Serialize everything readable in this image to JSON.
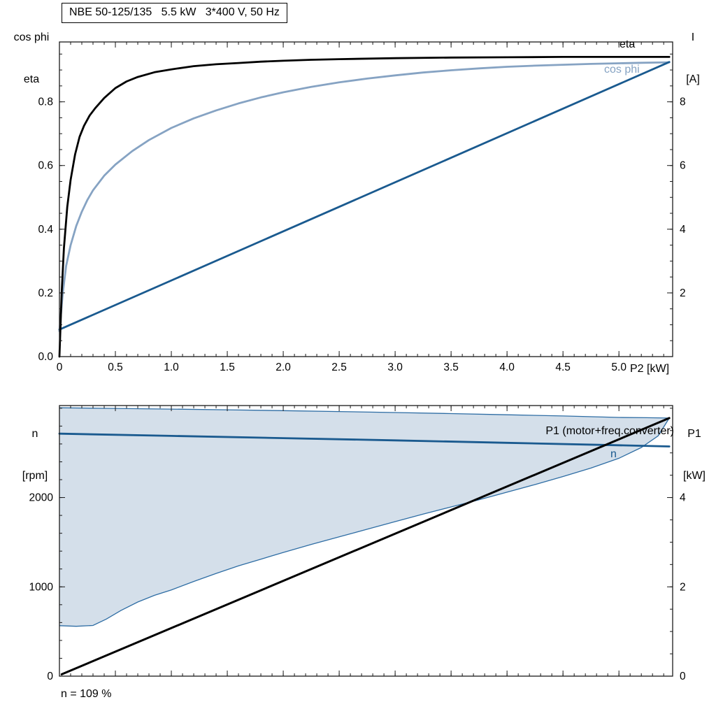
{
  "title_box": {
    "text": "NBE 50-125/135   5.5 kW   3*400 V, 50 Hz"
  },
  "top_chart": {
    "left_axis_title": [
      "cos phi",
      "eta"
    ],
    "right_axis_title": [
      "I",
      "[A]"
    ],
    "x_axis_title": "P2 [kW]",
    "eta_label": "eta",
    "cos_phi_label": "cos phi"
  },
  "bottom_chart": {
    "left_axis_title": [
      "n",
      "[rpm]"
    ],
    "right_axis_title": [
      "P1",
      "[kW]"
    ],
    "p1_label": "P1 (motor+freq.converter)",
    "n_label": "n",
    "footnote": "n = 109 %"
  },
  "colors": {
    "dark_blue": "#1a5a8f",
    "light_blue": "#86a3c3",
    "area_fill": "#cfdbe8",
    "area_edge": "#2e6da4",
    "axis": "#1a1a1a"
  },
  "chart_data": [
    {
      "type": "line",
      "title": "NBE 50-125/135 5.5 kW 3*400 V, 50 Hz",
      "xlabel": "P2 [kW]",
      "xlim": [
        0,
        5.48
      ],
      "x_major_ticks": [
        0,
        0.5,
        1.0,
        1.5,
        2.0,
        2.5,
        3.0,
        3.5,
        4.0,
        4.5,
        5.0
      ],
      "x_tick_labels": [
        "0",
        "0.5",
        "1.0",
        "1.5",
        "2.0",
        "2.5",
        "3.0",
        "3.5",
        "4.0",
        "4.5",
        "5.0"
      ],
      "x_minor_step": 0.1,
      "left_axis": {
        "label": "cos phi / eta",
        "lim": [
          0,
          0.988
        ],
        "major_ticks": [
          0,
          0.2,
          0.4,
          0.6,
          0.8
        ],
        "tick_labels": [
          "0.0",
          "0.2",
          "0.4",
          "0.6",
          "0.8"
        ],
        "minor_step": 0.05
      },
      "right_axis": {
        "label": "I [A]",
        "lim": [
          0,
          9.88
        ],
        "major_ticks": [
          2,
          4,
          6,
          8
        ],
        "tick_labels": [
          "2",
          "4",
          "6",
          "8"
        ],
        "minor_step": 0.5
      },
      "grid": false,
      "series": [
        {
          "name": "cos phi",
          "axis": "left",
          "color": "#86a3c3",
          "width": 2.8,
          "points": [
            [
              0,
              0.08
            ],
            [
              0.03,
              0.2
            ],
            [
              0.06,
              0.285
            ],
            [
              0.1,
              0.35
            ],
            [
              0.15,
              0.41
            ],
            [
              0.2,
              0.455
            ],
            [
              0.25,
              0.492
            ],
            [
              0.3,
              0.522
            ],
            [
              0.4,
              0.568
            ],
            [
              0.5,
              0.603
            ],
            [
              0.65,
              0.645
            ],
            [
              0.8,
              0.68
            ],
            [
              1.0,
              0.718
            ],
            [
              1.2,
              0.748
            ],
            [
              1.4,
              0.773
            ],
            [
              1.6,
              0.795
            ],
            [
              1.8,
              0.814
            ],
            [
              2.0,
              0.83
            ],
            [
              2.25,
              0.847
            ],
            [
              2.5,
              0.861
            ],
            [
              2.75,
              0.873
            ],
            [
              3.0,
              0.883
            ],
            [
              3.25,
              0.892
            ],
            [
              3.5,
              0.899
            ],
            [
              3.75,
              0.905
            ],
            [
              4.0,
              0.91
            ],
            [
              4.25,
              0.9135
            ],
            [
              4.5,
              0.9165
            ],
            [
              4.75,
              0.919
            ],
            [
              5.0,
              0.921
            ],
            [
              5.2,
              0.9225
            ],
            [
              5.45,
              0.924
            ]
          ]
        },
        {
          "name": "I",
          "axis": "right",
          "color": "#1a5a8f",
          "width": 2.8,
          "points": [
            [
              0,
              0.85
            ],
            [
              5.45,
              9.25
            ]
          ]
        },
        {
          "name": "eta",
          "axis": "left",
          "color": "#000000",
          "width": 2.8,
          "points": [
            [
              0,
              0
            ],
            [
              0.02,
              0.2
            ],
            [
              0.04,
              0.34
            ],
            [
              0.07,
              0.47
            ],
            [
              0.1,
              0.555
            ],
            [
              0.14,
              0.635
            ],
            [
              0.18,
              0.69
            ],
            [
              0.22,
              0.725
            ],
            [
              0.27,
              0.757
            ],
            [
              0.32,
              0.78
            ],
            [
              0.4,
              0.812
            ],
            [
              0.5,
              0.843
            ],
            [
              0.6,
              0.864
            ],
            [
              0.7,
              0.878
            ],
            [
              0.85,
              0.893
            ],
            [
              1.0,
              0.902
            ],
            [
              1.2,
              0.912
            ],
            [
              1.4,
              0.918
            ],
            [
              1.6,
              0.922
            ],
            [
              1.8,
              0.926
            ],
            [
              2.0,
              0.929
            ],
            [
              2.25,
              0.932
            ],
            [
              2.5,
              0.934
            ],
            [
              3.0,
              0.937
            ],
            [
              3.5,
              0.939
            ],
            [
              4.0,
              0.94
            ],
            [
              4.5,
              0.941
            ],
            [
              5.0,
              0.941
            ],
            [
              5.45,
              0.941
            ]
          ]
        }
      ]
    },
    {
      "type": "line+area",
      "xlabel": "",
      "xlim": [
        0,
        5.48
      ],
      "x_major_ticks": [
        0,
        0.5,
        1.0,
        1.5,
        2.0,
        2.5,
        3.0,
        3.5,
        4.0,
        4.5,
        5.0
      ],
      "x_tick_labels": null,
      "x_minor_step": 0.1,
      "left_axis": {
        "label": "n [rpm]",
        "lim": [
          0,
          3030
        ],
        "major_ticks": [
          0,
          1000,
          2000
        ],
        "tick_labels": [
          "0",
          "1000",
          "2000"
        ],
        "minor_step": 200
      },
      "right_axis": {
        "label": "P1 [kW]",
        "lim": [
          0,
          6.06
        ],
        "major_ticks": [
          0,
          2,
          4
        ],
        "tick_labels": [
          "0",
          "2",
          "4"
        ],
        "minor_step": 0.5
      },
      "grid": false,
      "annotation": "n = 109 %",
      "area": {
        "name": "speed-operating-range",
        "fill": "#cfdbe8",
        "opacity": 0.9,
        "edge_color": "#2e6da4",
        "edge_width": 1.3,
        "upper": [
          [
            0,
            3005
          ],
          [
            0.5,
            2998
          ],
          [
            1.0,
            2990
          ],
          [
            1.5,
            2982
          ],
          [
            2.0,
            2973
          ],
          [
            2.5,
            2963
          ],
          [
            3.0,
            2952
          ],
          [
            3.5,
            2940
          ],
          [
            4.0,
            2927
          ],
          [
            4.5,
            2913
          ],
          [
            5.0,
            2897
          ],
          [
            5.25,
            2894
          ],
          [
            5.45,
            2890
          ]
        ],
        "lower": [
          [
            0,
            565
          ],
          [
            0.15,
            558
          ],
          [
            0.3,
            568
          ],
          [
            0.42,
            640
          ],
          [
            0.55,
            735
          ],
          [
            0.7,
            830
          ],
          [
            0.85,
            905
          ],
          [
            1.0,
            965
          ],
          [
            1.2,
            1060
          ],
          [
            1.4,
            1150
          ],
          [
            1.6,
            1235
          ],
          [
            1.8,
            1310
          ],
          [
            2.0,
            1385
          ],
          [
            2.25,
            1475
          ],
          [
            2.5,
            1560
          ],
          [
            2.75,
            1645
          ],
          [
            3.0,
            1730
          ],
          [
            3.25,
            1815
          ],
          [
            3.5,
            1895
          ],
          [
            3.75,
            1975
          ],
          [
            4.0,
            2060
          ],
          [
            4.25,
            2145
          ],
          [
            4.5,
            2235
          ],
          [
            4.75,
            2330
          ],
          [
            5.0,
            2440
          ],
          [
            5.2,
            2560
          ],
          [
            5.35,
            2690
          ],
          [
            5.45,
            2890
          ]
        ]
      },
      "series": [
        {
          "name": "n",
          "axis": "left",
          "color": "#1a5a8f",
          "width": 2.8,
          "points": [
            [
              0,
              2715
            ],
            [
              1.0,
              2690
            ],
            [
              2.0,
              2665
            ],
            [
              3.0,
              2640
            ],
            [
              4.0,
              2613
            ],
            [
              5.0,
              2585
            ],
            [
              5.45,
              2572
            ]
          ]
        },
        {
          "name": "P1 (motor+freq.converter)",
          "axis": "right",
          "color": "#000000",
          "width": 3,
          "points": [
            [
              0.02,
              0.04
            ],
            [
              5.45,
              5.78
            ]
          ]
        }
      ]
    }
  ]
}
